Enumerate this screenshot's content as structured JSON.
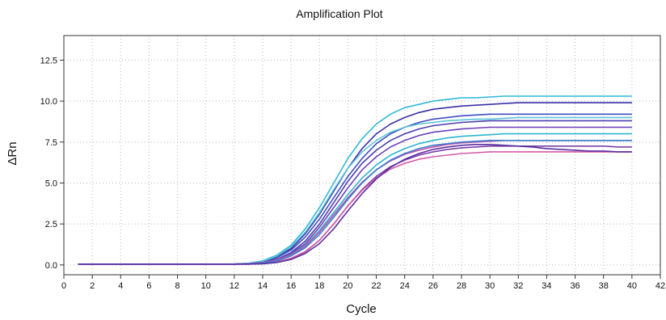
{
  "chart_data": {
    "type": "line",
    "title": "Amplification Plot",
    "xlabel": "Cycle",
    "ylabel": "ΔRn",
    "xlim": [
      0,
      42
    ],
    "ylim": [
      -0.6,
      14
    ],
    "xticks": [
      0,
      2,
      4,
      6,
      8,
      10,
      12,
      14,
      16,
      18,
      20,
      22,
      24,
      26,
      28,
      30,
      32,
      34,
      36,
      38,
      40,
      42
    ],
    "yticks": [
      0.0,
      2.5,
      5.0,
      7.5,
      10.0,
      12.5
    ],
    "xtick_labels": [
      "0",
      "2",
      "4",
      "6",
      "8",
      "10",
      "12",
      "14",
      "16",
      "18",
      "20",
      "22",
      "24",
      "26",
      "28",
      "30",
      "32",
      "34",
      "36",
      "38",
      "40",
      "42"
    ],
    "ytick_labels": [
      "0.0",
      "2.5",
      "5.0",
      "7.5",
      "10.0",
      "12.5"
    ],
    "grid": true,
    "grid_style": "dotted",
    "legend": "none",
    "x": [
      1,
      2,
      3,
      4,
      5,
      6,
      7,
      8,
      9,
      10,
      11,
      12,
      13,
      14,
      15,
      16,
      17,
      18,
      19,
      20,
      21,
      22,
      23,
      24,
      25,
      26,
      27,
      28,
      29,
      30,
      31,
      32,
      33,
      34,
      35,
      36,
      37,
      38,
      39,
      40
    ],
    "series": [
      {
        "color": "#2fb8d6",
        "values": [
          0.05,
          0.05,
          0.05,
          0.05,
          0.05,
          0.05,
          0.05,
          0.05,
          0.05,
          0.05,
          0.05,
          0.05,
          0.1,
          0.25,
          0.6,
          1.2,
          2.2,
          3.5,
          5.0,
          6.5,
          7.7,
          8.6,
          9.2,
          9.6,
          9.8,
          10.0,
          10.1,
          10.2,
          10.2,
          10.25,
          10.3,
          10.3,
          10.3,
          10.3,
          10.3,
          10.3,
          10.3,
          10.3,
          10.3,
          10.3
        ]
      },
      {
        "color": "#3a2fa8",
        "values": [
          0.05,
          0.05,
          0.05,
          0.05,
          0.05,
          0.05,
          0.05,
          0.05,
          0.05,
          0.05,
          0.05,
          0.05,
          0.08,
          0.2,
          0.5,
          1.0,
          1.9,
          3.1,
          4.5,
          5.9,
          7.1,
          8.0,
          8.6,
          9.0,
          9.3,
          9.5,
          9.6,
          9.7,
          9.75,
          9.8,
          9.85,
          9.9,
          9.9,
          9.9,
          9.9,
          9.9,
          9.9,
          9.9,
          9.9,
          9.9
        ]
      },
      {
        "color": "#3f4fc0",
        "values": [
          0.05,
          0.05,
          0.05,
          0.05,
          0.05,
          0.05,
          0.05,
          0.05,
          0.05,
          0.05,
          0.05,
          0.05,
          0.08,
          0.18,
          0.45,
          0.9,
          1.7,
          2.8,
          4.1,
          5.4,
          6.5,
          7.4,
          8.0,
          8.4,
          8.7,
          8.9,
          9.0,
          9.1,
          9.15,
          9.2,
          9.2,
          9.2,
          9.2,
          9.2,
          9.2,
          9.2,
          9.2,
          9.2,
          9.2,
          9.2
        ]
      },
      {
        "color": "#5ac4d8",
        "values": [
          0.05,
          0.05,
          0.05,
          0.05,
          0.05,
          0.05,
          0.05,
          0.05,
          0.05,
          0.05,
          0.05,
          0.05,
          0.1,
          0.22,
          0.55,
          1.1,
          2.0,
          3.2,
          4.6,
          5.9,
          6.9,
          7.6,
          8.1,
          8.4,
          8.6,
          8.7,
          8.8,
          8.85,
          8.9,
          8.9,
          8.95,
          9.0,
          9.0,
          9.0,
          9.0,
          9.0,
          9.0,
          9.0,
          9.0,
          9.0
        ]
      },
      {
        "color": "#4a3fb0",
        "values": [
          0.05,
          0.05,
          0.05,
          0.05,
          0.05,
          0.05,
          0.05,
          0.05,
          0.05,
          0.05,
          0.05,
          0.05,
          0.07,
          0.15,
          0.35,
          0.75,
          1.45,
          2.5,
          3.8,
          5.1,
          6.2,
          7.0,
          7.6,
          8.0,
          8.3,
          8.5,
          8.6,
          8.7,
          8.75,
          8.8,
          8.8,
          8.8,
          8.8,
          8.8,
          8.8,
          8.8,
          8.8,
          8.8,
          8.8,
          8.8
        ]
      },
      {
        "color": "#6a3fb8",
        "values": [
          0.05,
          0.05,
          0.05,
          0.05,
          0.05,
          0.05,
          0.05,
          0.05,
          0.05,
          0.05,
          0.05,
          0.05,
          0.07,
          0.15,
          0.35,
          0.7,
          1.3,
          2.3,
          3.5,
          4.7,
          5.8,
          6.6,
          7.2,
          7.6,
          7.9,
          8.1,
          8.2,
          8.3,
          8.35,
          8.4,
          8.4,
          8.4,
          8.4,
          8.4,
          8.4,
          8.4,
          8.4,
          8.4,
          8.4,
          8.4
        ]
      },
      {
        "color": "#2bb5cf",
        "values": [
          0.05,
          0.05,
          0.05,
          0.05,
          0.05,
          0.05,
          0.05,
          0.05,
          0.05,
          0.05,
          0.05,
          0.05,
          0.06,
          0.12,
          0.3,
          0.62,
          1.2,
          2.1,
          3.2,
          4.3,
          5.3,
          6.1,
          6.7,
          7.1,
          7.4,
          7.6,
          7.75,
          7.85,
          7.9,
          7.95,
          8.0,
          8.0,
          8.0,
          8.0,
          8.0,
          8.0,
          8.0,
          8.0,
          8.0,
          8.0
        ]
      },
      {
        "color": "#c04fa8",
        "values": [
          0.05,
          0.05,
          0.05,
          0.05,
          0.05,
          0.05,
          0.05,
          0.05,
          0.05,
          0.05,
          0.05,
          0.05,
          0.06,
          0.12,
          0.3,
          0.6,
          1.15,
          2.0,
          3.05,
          4.1,
          5.05,
          5.8,
          6.35,
          6.75,
          7.0,
          7.2,
          7.35,
          7.45,
          7.5,
          7.55,
          7.6,
          7.6,
          7.6,
          7.6,
          7.6,
          7.6,
          7.6,
          7.6,
          7.6,
          7.6
        ]
      },
      {
        "color": "#7a3fa8",
        "values": [
          0.05,
          0.05,
          0.05,
          0.05,
          0.05,
          0.05,
          0.05,
          0.05,
          0.05,
          0.05,
          0.05,
          0.05,
          0.05,
          0.08,
          0.18,
          0.4,
          0.8,
          1.5,
          2.5,
          3.6,
          4.6,
          5.4,
          6.0,
          6.4,
          6.7,
          6.9,
          7.05,
          7.15,
          7.2,
          7.25,
          7.25,
          7.25,
          7.25,
          7.25,
          7.25,
          7.25,
          7.25,
          7.25,
          7.2,
          7.2
        ]
      },
      {
        "color": "#d35aa8",
        "values": [
          0.05,
          0.05,
          0.05,
          0.05,
          0.05,
          0.05,
          0.05,
          0.05,
          0.05,
          0.05,
          0.05,
          0.05,
          0.05,
          0.08,
          0.18,
          0.4,
          0.82,
          1.5,
          2.5,
          3.6,
          4.55,
          5.3,
          5.85,
          6.2,
          6.45,
          6.6,
          6.7,
          6.8,
          6.85,
          6.9,
          6.9,
          6.9,
          6.9,
          6.9,
          6.9,
          6.9,
          6.9,
          6.9,
          6.9,
          6.9
        ]
      },
      {
        "color": "#3a7fd0",
        "values": [
          0.05,
          0.05,
          0.05,
          0.05,
          0.05,
          0.05,
          0.05,
          0.05,
          0.05,
          0.05,
          0.05,
          0.05,
          0.05,
          0.1,
          0.25,
          0.55,
          1.05,
          1.85,
          2.9,
          4.0,
          5.0,
          5.8,
          6.4,
          6.8,
          7.1,
          7.3,
          7.4,
          7.5,
          7.55,
          7.6,
          7.6,
          7.6,
          7.6,
          7.6,
          7.6,
          7.6,
          7.6,
          7.6,
          7.6,
          7.6
        ]
      },
      {
        "color": "#5a2fa0",
        "values": [
          0.05,
          0.05,
          0.05,
          0.05,
          0.05,
          0.05,
          0.05,
          0.05,
          0.05,
          0.05,
          0.05,
          0.05,
          0.05,
          0.07,
          0.15,
          0.33,
          0.7,
          1.3,
          2.2,
          3.3,
          4.35,
          5.25,
          5.95,
          6.45,
          6.8,
          7.05,
          7.2,
          7.3,
          7.35,
          7.35,
          7.3,
          7.25,
          7.2,
          7.1,
          7.05,
          7.0,
          6.95,
          6.95,
          6.9,
          6.9
        ]
      }
    ]
  }
}
